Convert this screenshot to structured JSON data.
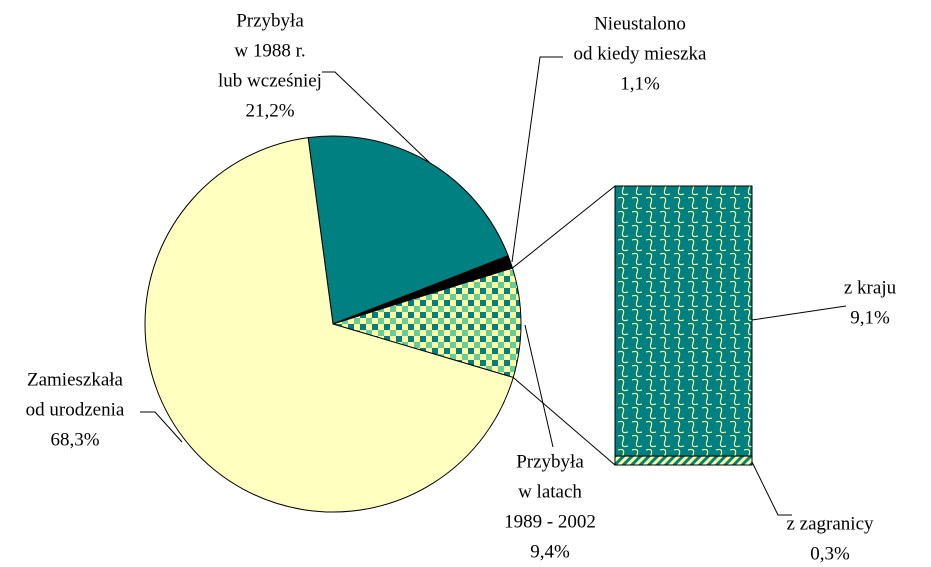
{
  "chart_data": {
    "type": "pie_of_bar",
    "categories": [
      [
        "Przybyła",
        "w 1988 r.",
        "lub wcześniej"
      ],
      [
        "Nieustalono",
        "od kiedy mieszka"
      ],
      [
        "Przybyła",
        "w latach",
        "1989 - 2002"
      ],
      [
        "Zamieszkała",
        "od urodzenia"
      ]
    ],
    "values": [
      21.2,
      1.1,
      9.4,
      68.3
    ],
    "value_labels": [
      "21,2%",
      "1,1%",
      "9,4%",
      "68,3%"
    ],
    "colors": [
      "#008080",
      "#000000",
      "#ccffcc",
      "#ffffc0"
    ],
    "bar": {
      "categories": [
        "z kraju",
        "z zagranicy"
      ],
      "values": [
        9.1,
        0.3
      ],
      "value_labels": [
        "9,1%",
        "0,3%"
      ],
      "colors": [
        "#008080",
        "#ffff99"
      ]
    }
  }
}
